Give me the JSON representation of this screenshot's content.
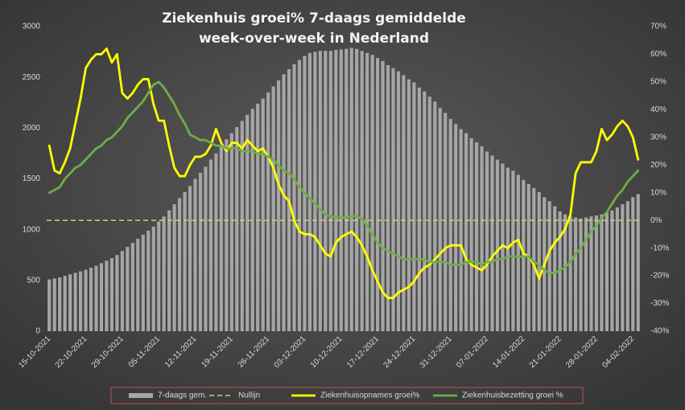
{
  "chart_data": {
    "type": "combo",
    "title": [
      "Ziekenhuis groei% 7-daags gemiddelde",
      "week-over-week in Nederland"
    ],
    "categories": [
      "15-10-2021",
      null,
      null,
      null,
      null,
      null,
      null,
      "22-10-2021",
      null,
      null,
      null,
      null,
      null,
      null,
      "29-10-2021",
      null,
      null,
      null,
      null,
      null,
      null,
      "05-11-2021",
      null,
      null,
      null,
      null,
      null,
      null,
      "12-11-2021",
      null,
      null,
      null,
      null,
      null,
      null,
      "19-11-2021",
      null,
      null,
      null,
      null,
      null,
      null,
      "26-11-2021",
      null,
      null,
      null,
      null,
      null,
      null,
      "03-12-2021",
      null,
      null,
      null,
      null,
      null,
      null,
      "10-12-2021",
      null,
      null,
      null,
      null,
      null,
      null,
      "17-12-2021",
      null,
      null,
      null,
      null,
      null,
      null,
      "24-12-2021",
      null,
      null,
      null,
      null,
      null,
      null,
      "31-12-2021",
      null,
      null,
      null,
      null,
      null,
      null,
      "07-01-2022",
      null,
      null,
      null,
      null,
      null,
      null,
      "14-01-2022",
      null,
      null,
      null,
      null,
      null,
      null,
      "21-01-2022",
      null,
      null,
      null,
      null,
      null,
      null,
      "28-01-2022",
      null,
      null,
      null,
      null,
      null,
      null,
      "04-02-2022",
      null
    ],
    "series": [
      {
        "name": "7-daags gem.",
        "type": "bar",
        "color": "#a6a6a6",
        "values": [
          510,
          520,
          530,
          545,
          560,
          575,
          590,
          605,
          625,
          645,
          670,
          695,
          720,
          750,
          790,
          830,
          870,
          910,
          950,
          990,
          1030,
          1080,
          1130,
          1190,
          1250,
          1310,
          1370,
          1430,
          1500,
          1560,
          1620,
          1690,
          1750,
          1820,
          1890,
          1950,
          2010,
          2070,
          2130,
          2190,
          2240,
          2290,
          2350,
          2410,
          2470,
          2530,
          2580,
          2630,
          2670,
          2710,
          2740,
          2750,
          2760,
          2760,
          2760,
          2770,
          2775,
          2780,
          2790,
          2780,
          2760,
          2740,
          2720,
          2690,
          2660,
          2620,
          2590,
          2560,
          2520,
          2480,
          2450,
          2400,
          2360,
          2310,
          2260,
          2200,
          2150,
          2090,
          2040,
          1990,
          1950,
          1900,
          1860,
          1820,
          1770,
          1730,
          1690,
          1650,
          1610,
          1580,
          1540,
          1490,
          1450,
          1410,
          1370,
          1320,
          1280,
          1230,
          1180,
          1150,
          1130,
          1120,
          1110,
          1120,
          1130,
          1140,
          1150,
          1170,
          1190,
          1220,
          1250,
          1280,
          1320,
          1350
        ]
      },
      {
        "name": "Ziekenhuisopnames groei%",
        "type": "line",
        "axis": "y2",
        "color": "#ffff00",
        "values": [
          27,
          18,
          17,
          21,
          26,
          35,
          44,
          55,
          58,
          60,
          60,
          62,
          57,
          60,
          46,
          44,
          46,
          49,
          51,
          51,
          42,
          36,
          36,
          27,
          19,
          16,
          16,
          20,
          23,
          23,
          24,
          27,
          33,
          28,
          25,
          28,
          28,
          26,
          29,
          27,
          25,
          26,
          23,
          19,
          13,
          9,
          7,
          0,
          -4,
          -5,
          -5,
          -6,
          -9,
          -12,
          -13,
          -8,
          -6,
          -5,
          -4,
          -6,
          -9,
          -13,
          -18,
          -22,
          -26,
          -28,
          -28,
          -26,
          -25,
          -24,
          -22,
          -19,
          -17,
          -16,
          -14,
          -12,
          -10,
          -9,
          -9,
          -9,
          -14,
          -16,
          -17,
          -18,
          -16,
          -13,
          -11,
          -9,
          -10,
          -8,
          -7,
          -12,
          -13,
          -16,
          -21,
          -16,
          -11,
          -8,
          -6,
          -3,
          2,
          17,
          21,
          21,
          21,
          25,
          33,
          29,
          31,
          34,
          36,
          34,
          30,
          22
        ]
      },
      {
        "name": "Ziekenhuisbezetting groei %",
        "type": "line",
        "axis": "y2",
        "color": "#70ad47",
        "values": [
          10,
          11,
          12,
          15,
          17,
          19,
          20,
          22,
          24,
          26,
          27,
          29,
          30,
          32,
          34,
          37,
          39,
          41,
          43,
          46,
          49,
          50,
          48,
          45,
          42,
          38,
          35,
          31,
          30,
          29,
          29,
          28,
          27,
          27,
          26,
          26,
          26,
          25,
          25,
          25,
          24,
          24,
          23,
          22,
          20,
          18,
          17,
          15,
          12,
          10,
          8,
          6,
          4,
          2,
          1.5,
          1,
          1,
          1,
          1.5,
          1.5,
          0.5,
          -2,
          -5,
          -8,
          -10,
          -11,
          -12,
          -13,
          -14,
          -14,
          -14,
          -14,
          -14,
          -15,
          -15,
          -15,
          -15,
          -16,
          -16,
          -16,
          -15,
          -15,
          -15,
          -16,
          -15,
          -15,
          -14,
          -14,
          -13,
          -13,
          -13,
          -13,
          -13,
          -15,
          -16,
          -18,
          -19,
          -19,
          -18,
          -17,
          -15,
          -12,
          -10,
          -7,
          -4,
          -2,
          1,
          3,
          6,
          9,
          11,
          14,
          16,
          18
        ]
      }
    ],
    "reference_lines": [
      {
        "name": "Nullijn",
        "value": 0,
        "axis": "y2",
        "color": "#d6c88e"
      }
    ],
    "ylim": [
      0,
      3000
    ],
    "yticks": [
      0,
      500,
      1000,
      1500,
      2000,
      2500,
      3000
    ],
    "y2lim": [
      -40,
      70
    ],
    "y2ticks": [
      {
        "value": -40,
        "label": "-40%"
      },
      {
        "value": -30,
        "label": "-30%"
      },
      {
        "value": -20,
        "label": "-20%"
      },
      {
        "value": -10,
        "label": "-10%"
      },
      {
        "value": 0,
        "label": "0%"
      },
      {
        "value": 10,
        "label": "10%"
      },
      {
        "value": 20,
        "label": "20%"
      },
      {
        "value": 30,
        "label": "30%"
      },
      {
        "value": 40,
        "label": "40%"
      },
      {
        "value": 50,
        "label": "50%"
      },
      {
        "value": 60,
        "label": "60%"
      },
      {
        "value": 70,
        "label": "70%"
      }
    ],
    "grid": false,
    "legend": "bottom"
  }
}
